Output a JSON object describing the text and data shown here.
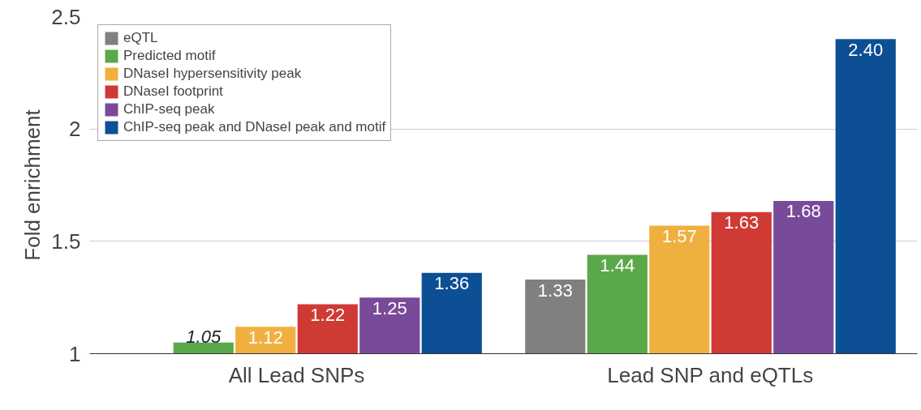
{
  "chart_data": {
    "type": "bar",
    "ylabel": "Fold enrichment",
    "categories": [
      "All Lead SNPs",
      "Lead SNP and eQTLs"
    ],
    "series": [
      {
        "name": "eQTL",
        "color": "#808080",
        "values": [
          null,
          1.33
        ],
        "value_labels": [
          null,
          "1.33"
        ]
      },
      {
        "name": "Predicted motif",
        "color": "#5aa84a",
        "values": [
          1.05,
          1.44
        ],
        "value_labels": [
          "1.05",
          "1.44"
        ]
      },
      {
        "name": "DNaseI hypersensitivity peak",
        "color": "#f0b040",
        "values": [
          1.12,
          1.57
        ],
        "value_labels": [
          "1.12",
          "1.57"
        ]
      },
      {
        "name": "DNaseI footprint",
        "color": "#d03a35",
        "values": [
          1.22,
          1.63
        ],
        "value_labels": [
          "1.22",
          "1.63"
        ]
      },
      {
        "name": "ChIP-seq peak",
        "color": "#7a4a9a",
        "values": [
          1.25,
          1.68
        ],
        "value_labels": [
          "1.25",
          "1.68"
        ]
      },
      {
        "name": "ChIP-seq peak and DNaseI peak and motif",
        "color": "#0d4f94",
        "values": [
          1.36,
          2.4
        ],
        "value_labels": [
          "1.36",
          "2.40"
        ]
      }
    ],
    "ylim": [
      1,
      2.5
    ],
    "yticks": [
      1,
      1.5,
      2,
      2.5
    ],
    "grid": "y",
    "legend": "top left"
  }
}
